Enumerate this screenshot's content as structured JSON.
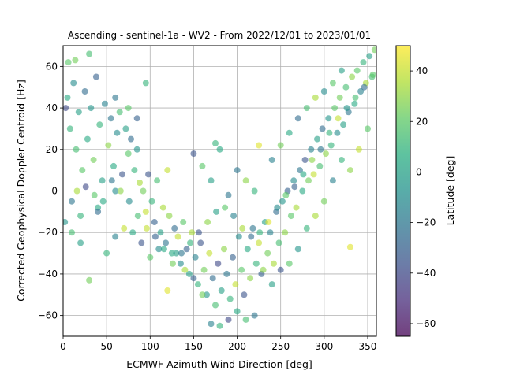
{
  "chart_data": {
    "type": "scatter",
    "title": "Ascending - sentinel-1a - WV2 - From 2022/12/01 to 2023/01/01",
    "xlabel": "ECMWF Azimuth Wind Direction [deg]",
    "ylabel": "Corrected Geophysical Doppler Centroid [Hz]",
    "xlim": [
      0,
      360
    ],
    "ylim": [
      -70,
      70
    ],
    "xticks": [
      0,
      50,
      100,
      150,
      200,
      250,
      300,
      350
    ],
    "yticks": [
      -60,
      -40,
      -20,
      0,
      20,
      40,
      60
    ],
    "grid": true,
    "colorbar": {
      "label": "Latitude [deg]",
      "range": [
        -65,
        50
      ],
      "ticks": [
        -60,
        -40,
        -20,
        0,
        20,
        40
      ],
      "colormap": "viridis"
    },
    "marker_alpha": 0.6,
    "series": [
      {
        "points": [
          [
            5,
            45,
            5
          ],
          [
            8,
            30,
            10
          ],
          [
            12,
            52,
            -10
          ],
          [
            15,
            20,
            15
          ],
          [
            18,
            38,
            0
          ],
          [
            22,
            10,
            20
          ],
          [
            25,
            48,
            -25
          ],
          [
            28,
            25,
            5
          ],
          [
            32,
            40,
            -5
          ],
          [
            35,
            15,
            25
          ],
          [
            38,
            55,
            -30
          ],
          [
            42,
            32,
            10
          ],
          [
            45,
            5,
            0
          ],
          [
            48,
            42,
            -15
          ],
          [
            52,
            22,
            30
          ],
          [
            55,
            35,
            -20
          ],
          [
            58,
            12,
            5
          ],
          [
            62,
            28,
            -10
          ],
          [
            65,
            38,
            15
          ],
          [
            68,
            8,
            -35
          ],
          [
            72,
            30,
            0
          ],
          [
            75,
            18,
            20
          ],
          [
            78,
            25,
            -25
          ],
          [
            82,
            10,
            10
          ],
          [
            85,
            20,
            -5
          ],
          [
            88,
            4,
            35
          ],
          [
            10,
            -5,
            -20
          ],
          [
            20,
            -12,
            10
          ],
          [
            6,
            62,
            20
          ],
          [
            14,
            63,
            25
          ],
          [
            30,
            66,
            15
          ],
          [
            3,
            40,
            -40
          ],
          [
            40,
            -8,
            5
          ],
          [
            60,
            0,
            -10
          ],
          [
            92,
            0,
            25
          ],
          [
            95,
            -10,
            40
          ],
          [
            98,
            8,
            -35
          ],
          [
            102,
            -5,
            10
          ],
          [
            105,
            -15,
            -30
          ],
          [
            108,
            5,
            15
          ],
          [
            112,
            -20,
            0
          ],
          [
            115,
            -8,
            35
          ],
          [
            118,
            -25,
            -20
          ],
          [
            122,
            -12,
            30
          ],
          [
            125,
            -30,
            5
          ],
          [
            128,
            -18,
            -25
          ],
          [
            132,
            -22,
            40
          ],
          [
            135,
            -35,
            -10
          ],
          [
            138,
            -15,
            20
          ],
          [
            142,
            -28,
            -30
          ],
          [
            145,
            -40,
            0
          ],
          [
            148,
            -20,
            35
          ],
          [
            152,
            -32,
            -15
          ],
          [
            155,
            -45,
            10
          ],
          [
            158,
            -25,
            -35
          ],
          [
            162,
            -38,
            25
          ],
          [
            165,
            -50,
            -5
          ],
          [
            168,
            -30,
            40
          ],
          [
            172,
            -42,
            -25
          ],
          [
            175,
            -55,
            15
          ],
          [
            178,
            -35,
            -40
          ],
          [
            182,
            -48,
            0
          ],
          [
            185,
            -28,
            30
          ],
          [
            188,
            -40,
            -20
          ],
          [
            192,
            -52,
            10
          ],
          [
            195,
            -32,
            -30
          ],
          [
            198,
            -45,
            40
          ],
          [
            202,
            -22,
            -10
          ],
          [
            205,
            -38,
            20
          ],
          [
            208,
            -50,
            -35
          ],
          [
            212,
            -28,
            5
          ],
          [
            215,
            -42,
            30
          ],
          [
            218,
            -18,
            -20
          ],
          [
            222,
            -35,
            10
          ],
          [
            225,
            -25,
            40
          ],
          [
            228,
            -40,
            -30
          ],
          [
            232,
            -15,
            0
          ],
          [
            235,
            -30,
            25
          ],
          [
            238,
            -20,
            -15
          ],
          [
            242,
            -35,
            35
          ],
          [
            245,
            -10,
            -25
          ],
          [
            248,
            -25,
            15
          ],
          [
            252,
            -5,
            -5
          ],
          [
            255,
            -20,
            30
          ],
          [
            258,
            0,
            -30
          ],
          [
            262,
            -12,
            20
          ],
          [
            265,
            5,
            -10
          ],
          [
            268,
            -8,
            35
          ],
          [
            272,
            10,
            -20
          ],
          [
            275,
            0,
            5
          ],
          [
            278,
            15,
            -35
          ],
          [
            282,
            5,
            25
          ],
          [
            285,
            20,
            -15
          ],
          [
            288,
            8,
            40
          ],
          [
            292,
            25,
            0
          ],
          [
            295,
            12,
            15
          ],
          [
            298,
            30,
            -25
          ],
          [
            302,
            18,
            30
          ],
          [
            305,
            35,
            -5
          ],
          [
            308,
            22,
            10
          ],
          [
            312,
            40,
            20
          ],
          [
            315,
            28,
            -10
          ],
          [
            318,
            45,
            25
          ],
          [
            322,
            32,
            0
          ],
          [
            325,
            50,
            15
          ],
          [
            328,
            38,
            -20
          ],
          [
            332,
            55,
            30
          ],
          [
            335,
            42,
            5
          ],
          [
            338,
            58,
            20
          ],
          [
            342,
            48,
            -15
          ],
          [
            345,
            62,
            10
          ],
          [
            348,
            52,
            35
          ],
          [
            352,
            65,
            0
          ],
          [
            355,
            55,
            15
          ],
          [
            358,
            68,
            25
          ],
          [
            340,
            20,
            40
          ],
          [
            350,
            30,
            20
          ],
          [
            330,
            10,
            30
          ],
          [
            320,
            15,
            10
          ],
          [
            310,
            5,
            -15
          ],
          [
            300,
            -5,
            25
          ],
          [
            290,
            -12,
            35
          ],
          [
            280,
            -18,
            10
          ],
          [
            270,
            -28,
            -5
          ],
          [
            260,
            -35,
            20
          ],
          [
            250,
            -38,
            -35
          ],
          [
            240,
            -45,
            0
          ],
          [
            230,
            -38,
            30
          ],
          [
            220,
            -60,
            -20
          ],
          [
            210,
            -62,
            15
          ],
          [
            200,
            -58,
            5
          ],
          [
            190,
            -62,
            -40
          ],
          [
            180,
            -65,
            10
          ],
          [
            170,
            -64,
            -15
          ],
          [
            160,
            -50,
            25
          ],
          [
            150,
            -42,
            -30
          ],
          [
            140,
            -38,
            35
          ],
          [
            130,
            -30,
            0
          ],
          [
            120,
            -48,
            45
          ],
          [
            110,
            -28,
            -10
          ],
          [
            100,
            -32,
            20
          ],
          [
            90,
            -25,
            -35
          ],
          [
            80,
            -20,
            5
          ],
          [
            70,
            -18,
            40
          ],
          [
            60,
            -22,
            -15
          ],
          [
            50,
            -30,
            10
          ],
          [
            40,
            -10,
            -25
          ],
          [
            30,
            -43,
            25
          ],
          [
            20,
            -25,
            0
          ],
          [
            10,
            -20,
            15
          ],
          [
            2,
            -15,
            -5
          ],
          [
            16,
            0,
            35
          ],
          [
            26,
            2,
            -40
          ],
          [
            36,
            -2,
            20
          ],
          [
            46,
            -5,
            5
          ],
          [
            56,
            5,
            -20
          ],
          [
            66,
            0,
            30
          ],
          [
            76,
            -5,
            -10
          ],
          [
            86,
            -12,
            15
          ],
          [
            96,
            -18,
            40
          ],
          [
            106,
            -22,
            -30
          ],
          [
            116,
            -28,
            5
          ],
          [
            126,
            -35,
            25
          ],
          [
            136,
            -30,
            -20
          ],
          [
            146,
            -25,
            10
          ],
          [
            156,
            -20,
            -35
          ],
          [
            166,
            -15,
            30
          ],
          [
            176,
            -10,
            0
          ],
          [
            186,
            -8,
            20
          ],
          [
            196,
            -12,
            -15
          ],
          [
            206,
            -18,
            35
          ],
          [
            216,
            -22,
            -25
          ],
          [
            226,
            -20,
            10
          ],
          [
            236,
            -15,
            45
          ],
          [
            246,
            -8,
            -10
          ],
          [
            256,
            -2,
            20
          ],
          [
            266,
            2,
            -30
          ],
          [
            276,
            8,
            5
          ],
          [
            286,
            15,
            30
          ],
          [
            296,
            20,
            -20
          ],
          [
            306,
            28,
            10
          ],
          [
            316,
            35,
            40
          ],
          [
            326,
            40,
            -5
          ],
          [
            336,
            45,
            15
          ],
          [
            346,
            50,
            -25
          ],
          [
            356,
            56,
            20
          ],
          [
            330,
            -27,
            45
          ],
          [
            225,
            22,
            45
          ],
          [
            120,
            10,
            40
          ],
          [
            95,
            52,
            10
          ],
          [
            60,
            45,
            -20
          ],
          [
            75,
            40,
            20
          ],
          [
            85,
            35,
            -30
          ],
          [
            180,
            20,
            5
          ],
          [
            200,
            10,
            -20
          ],
          [
            210,
            5,
            30
          ],
          [
            220,
            0,
            10
          ],
          [
            240,
            15,
            -15
          ],
          [
            250,
            22,
            25
          ],
          [
            260,
            28,
            5
          ],
          [
            270,
            35,
            -25
          ],
          [
            280,
            40,
            15
          ],
          [
            290,
            45,
            35
          ],
          [
            300,
            48,
            -10
          ],
          [
            310,
            52,
            20
          ],
          [
            320,
            58,
            0
          ],
          [
            150,
            18,
            -35
          ],
          [
            160,
            12,
            20
          ],
          [
            170,
            5,
            0
          ],
          [
            190,
            -2,
            -20
          ],
          [
            175,
            23,
            10
          ]
        ]
      }
    ]
  }
}
